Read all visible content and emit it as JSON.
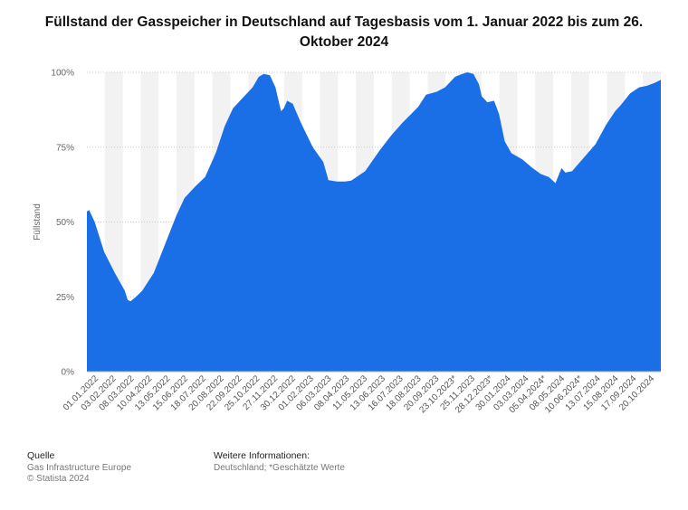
{
  "chart_data": {
    "type": "area",
    "title": "Füllstand der Gasspeicher in Deutschland auf Tagesbasis vom 1. Januar 2022 bis zum 26. Oktober 2024",
    "ylabel": "Füllstand",
    "xlabel": "",
    "ylim": [
      0,
      100
    ],
    "y_ticks": [
      "0%",
      "25%",
      "50%",
      "75%",
      "100%"
    ],
    "x_ticks": [
      "01.01.2022",
      "03.02.2022",
      "08.03.2022",
      "10.04.2022",
      "13.05.2022",
      "15.06.2022",
      "18.07.2022",
      "20.08.2022",
      "22.09.2022",
      "25.10.2022",
      "27.11.2022",
      "30.12.2022",
      "01.02.2023",
      "06.03.2023",
      "08.04.2023",
      "11.05.2023",
      "13.06.2023",
      "16.07.2023",
      "18.08.2023",
      "20.09.2023",
      "23.10.2023*",
      "25.11.2023",
      "28.12.2023*",
      "30.01.2024",
      "03.03.2024",
      "05.04.2024*",
      "08.05.2024",
      "10.06.2024*",
      "13.07.2024",
      "15.08.2024",
      "17.09.2024",
      "20.10.2024"
    ],
    "x_start": "2022-01-01",
    "x_end": "2024-10-26",
    "color": "#1a6ee6",
    "grid": true,
    "series": [
      {
        "x": [
          "2022-01-01",
          "2022-01-05",
          "2022-01-15",
          "2022-02-01",
          "2022-02-20",
          "2022-03-10",
          "2022-03-15",
          "2022-03-20",
          "2022-03-30",
          "2022-04-10",
          "2022-05-01",
          "2022-05-20",
          "2022-06-10",
          "2022-06-25",
          "2022-07-15",
          "2022-08-01",
          "2022-08-20",
          "2022-09-05",
          "2022-09-20",
          "2022-10-05",
          "2022-10-25",
          "2022-11-05",
          "2022-11-14",
          "2022-11-25",
          "2022-12-05",
          "2022-12-15",
          "2022-12-20",
          "2022-12-26",
          "2023-01-05",
          "2023-01-20",
          "2023-02-10",
          "2023-03-01",
          "2023-03-10",
          "2023-03-25",
          "2023-04-08",
          "2023-04-20",
          "2023-05-15",
          "2023-06-10",
          "2023-07-01",
          "2023-07-20",
          "2023-08-18",
          "2023-09-01",
          "2023-09-20",
          "2023-10-05",
          "2023-10-23",
          "2023-11-05",
          "2023-11-14",
          "2023-11-25",
          "2023-12-05",
          "2023-12-10",
          "2023-12-20",
          "2024-01-01",
          "2024-01-10",
          "2024-01-20",
          "2024-02-01",
          "2024-02-20",
          "2024-03-10",
          "2024-03-25",
          "2024-04-08",
          "2024-04-20",
          "2024-05-01",
          "2024-05-08",
          "2024-05-20",
          "2024-06-10",
          "2024-07-01",
          "2024-07-20",
          "2024-08-05",
          "2024-08-15",
          "2024-09-01",
          "2024-09-17",
          "2024-10-01",
          "2024-10-15",
          "2024-10-26"
        ],
        "y": [
          53.5,
          54,
          50,
          40,
          33,
          27,
          24,
          23.5,
          25,
          27,
          33,
          42,
          52,
          58,
          62,
          65,
          73,
          82,
          88,
          91,
          95,
          98.5,
          99.5,
          99,
          95,
          87,
          88,
          90.5,
          89.5,
          83,
          75,
          70,
          64,
          63.5,
          63.5,
          63.8,
          67,
          74,
          79,
          83,
          88.5,
          92.5,
          93.5,
          95,
          98.5,
          99.5,
          100,
          99.5,
          96,
          92,
          90,
          90.5,
          86,
          77,
          73,
          71,
          68,
          66,
          65,
          63,
          68,
          66.5,
          67,
          71.5,
          76,
          82.5,
          87,
          89,
          93,
          95,
          95.5,
          96.5,
          97.5
        ]
      }
    ]
  },
  "footer": {
    "source_heading": "Quelle",
    "source_line1": "Gas Infrastructure Europe",
    "source_line2": "© Statista 2024",
    "info_heading": "Weitere Informationen:",
    "info_line1": "Deutschland; *Geschätzte Werte"
  }
}
